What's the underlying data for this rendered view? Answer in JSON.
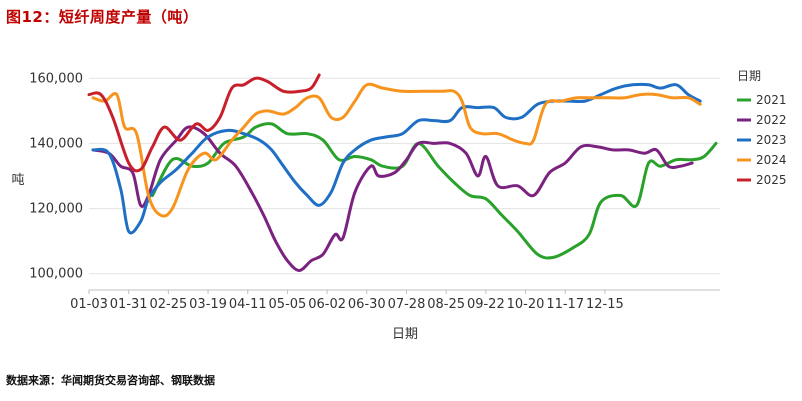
{
  "header": {
    "title": "图12：短纤周度产量（吨）"
  },
  "footer": {
    "source": "数据来源：华闻期货交易咨询部、钢联数据"
  },
  "chart_data": {
    "type": "line",
    "title": "图12：短纤周度产量（吨）",
    "xlabel": "日期",
    "ylabel": "吨",
    "x_ticks": [
      "01-03",
      "01-31",
      "02-25",
      "03-19",
      "04-11",
      "05-05",
      "06-02",
      "06-30",
      "07-28",
      "08-25",
      "09-22",
      "10-20",
      "11-17",
      "12-15"
    ],
    "ylim": [
      95000,
      165000
    ],
    "y_ticks": [
      100000,
      120000,
      140000,
      160000
    ],
    "y_tick_labels": [
      "100,000",
      "120,000",
      "140,000",
      "160,000"
    ],
    "grid": "horizontal",
    "legend": {
      "title": "日期",
      "placement": "right"
    },
    "series": [
      {
        "name": "2021",
        "color": "#2aa12a",
        "points": [
          [
            3.2,
            124000
          ],
          [
            4.2,
            135000
          ],
          [
            5.2,
            133000
          ],
          [
            6.0,
            134000
          ],
          [
            6.8,
            140000
          ],
          [
            7.8,
            142000
          ],
          [
            8.4,
            145000
          ],
          [
            9.2,
            146000
          ],
          [
            10.0,
            143000
          ],
          [
            11.0,
            143000
          ],
          [
            11.8,
            141000
          ],
          [
            12.6,
            135000
          ],
          [
            13.4,
            136000
          ],
          [
            14.2,
            135000
          ],
          [
            14.8,
            133000
          ],
          [
            15.8,
            133000
          ],
          [
            16.6,
            140000
          ],
          [
            17.6,
            133000
          ],
          [
            18.4,
            128000
          ],
          [
            19.2,
            124000
          ],
          [
            20.0,
            123000
          ],
          [
            20.8,
            118000
          ],
          [
            21.6,
            113000
          ],
          [
            22.6,
            106000
          ],
          [
            23.4,
            105000
          ],
          [
            24.4,
            108000
          ],
          [
            25.2,
            112000
          ],
          [
            25.8,
            122000
          ],
          [
            26.8,
            124000
          ],
          [
            27.6,
            121000
          ],
          [
            28.2,
            134000
          ],
          [
            28.8,
            133000
          ],
          [
            29.6,
            135000
          ],
          [
            30.4,
            135000
          ],
          [
            31.0,
            136000
          ],
          [
            31.6,
            140000
          ]
        ]
      },
      {
        "name": "2022",
        "color": "#7b2280",
        "points": [
          [
            0.2,
            138000
          ],
          [
            1.0,
            137000
          ],
          [
            1.6,
            133000
          ],
          [
            2.2,
            131000
          ],
          [
            2.6,
            121000
          ],
          [
            3.0,
            124000
          ],
          [
            3.6,
            135000
          ],
          [
            4.4,
            141000
          ],
          [
            5.0,
            145000
          ],
          [
            5.8,
            143000
          ],
          [
            6.6,
            137000
          ],
          [
            7.4,
            133000
          ],
          [
            8.2,
            125000
          ],
          [
            8.8,
            118000
          ],
          [
            9.4,
            110000
          ],
          [
            10.0,
            104000
          ],
          [
            10.6,
            101000
          ],
          [
            11.2,
            104000
          ],
          [
            11.8,
            106000
          ],
          [
            12.4,
            112000
          ],
          [
            12.8,
            111000
          ],
          [
            13.4,
            125000
          ],
          [
            14.2,
            133000
          ],
          [
            14.6,
            130000
          ],
          [
            15.4,
            131000
          ],
          [
            16.0,
            135000
          ],
          [
            16.6,
            140000
          ],
          [
            17.4,
            140000
          ],
          [
            18.2,
            140000
          ],
          [
            19.0,
            137000
          ],
          [
            19.6,
            130000
          ],
          [
            20.0,
            136000
          ],
          [
            20.6,
            127000
          ],
          [
            21.6,
            127000
          ],
          [
            22.4,
            124000
          ],
          [
            23.2,
            131000
          ],
          [
            24.0,
            134000
          ],
          [
            24.8,
            139000
          ],
          [
            25.6,
            139000
          ],
          [
            26.4,
            138000
          ],
          [
            27.2,
            138000
          ],
          [
            28.0,
            137000
          ],
          [
            28.6,
            138000
          ],
          [
            29.2,
            133000
          ],
          [
            29.8,
            133000
          ],
          [
            30.4,
            134000
          ]
        ]
      },
      {
        "name": "2023",
        "color": "#1f6fc4",
        "points": [
          [
            0.2,
            138000
          ],
          [
            1.0,
            137000
          ],
          [
            1.6,
            126000
          ],
          [
            2.0,
            113000
          ],
          [
            2.6,
            116000
          ],
          [
            3.0,
            123000
          ],
          [
            3.6,
            128000
          ],
          [
            4.4,
            132000
          ],
          [
            5.2,
            137000
          ],
          [
            6.0,
            142000
          ],
          [
            7.0,
            144000
          ],
          [
            7.8,
            143000
          ],
          [
            8.6,
            141000
          ],
          [
            9.2,
            138000
          ],
          [
            9.8,
            133000
          ],
          [
            10.4,
            128000
          ],
          [
            11.0,
            124000
          ],
          [
            11.6,
            121000
          ],
          [
            12.2,
            125000
          ],
          [
            12.8,
            134000
          ],
          [
            13.4,
            138000
          ],
          [
            14.2,
            141000
          ],
          [
            15.0,
            142000
          ],
          [
            15.8,
            143000
          ],
          [
            16.6,
            147000
          ],
          [
            17.4,
            147000
          ],
          [
            18.2,
            147000
          ],
          [
            18.8,
            151000
          ],
          [
            19.6,
            151000
          ],
          [
            20.4,
            151000
          ],
          [
            21.0,
            148000
          ],
          [
            21.8,
            148000
          ],
          [
            22.6,
            152000
          ],
          [
            23.4,
            153000
          ],
          [
            24.2,
            153000
          ],
          [
            25.0,
            153000
          ],
          [
            25.8,
            155000
          ],
          [
            26.6,
            157000
          ],
          [
            27.4,
            158000
          ],
          [
            28.2,
            158000
          ],
          [
            28.8,
            157000
          ],
          [
            29.6,
            158000
          ],
          [
            30.2,
            155000
          ],
          [
            30.8,
            153000
          ]
        ]
      },
      {
        "name": "2024",
        "color": "#f7941d",
        "points": [
          [
            0.2,
            154000
          ],
          [
            0.8,
            153000
          ],
          [
            1.4,
            155000
          ],
          [
            1.8,
            145000
          ],
          [
            2.4,
            143000
          ],
          [
            3.0,
            124000
          ],
          [
            3.6,
            118000
          ],
          [
            4.2,
            120000
          ],
          [
            5.0,
            132000
          ],
          [
            5.8,
            137000
          ],
          [
            6.4,
            135000
          ],
          [
            7.2,
            141000
          ],
          [
            7.8,
            145000
          ],
          [
            8.4,
            149000
          ],
          [
            9.0,
            150000
          ],
          [
            9.8,
            149000
          ],
          [
            10.4,
            151000
          ],
          [
            11.0,
            154000
          ],
          [
            11.6,
            154000
          ],
          [
            12.2,
            148000
          ],
          [
            12.8,
            148000
          ],
          [
            13.4,
            153000
          ],
          [
            14.0,
            158000
          ],
          [
            14.8,
            157000
          ],
          [
            15.8,
            156000
          ],
          [
            16.8,
            156000
          ],
          [
            17.8,
            156000
          ],
          [
            18.4,
            156000
          ],
          [
            18.8,
            153000
          ],
          [
            19.2,
            145000
          ],
          [
            19.8,
            143000
          ],
          [
            20.6,
            143000
          ],
          [
            21.4,
            141000
          ],
          [
            22.0,
            140000
          ],
          [
            22.4,
            141000
          ],
          [
            23.0,
            152000
          ],
          [
            23.8,
            153000
          ],
          [
            24.6,
            154000
          ],
          [
            25.4,
            154000
          ],
          [
            26.2,
            154000
          ],
          [
            27.0,
            154000
          ],
          [
            27.8,
            155000
          ],
          [
            28.6,
            155000
          ],
          [
            29.4,
            154000
          ],
          [
            30.2,
            154000
          ],
          [
            30.8,
            152000
          ]
        ]
      },
      {
        "name": "2025",
        "color": "#c8202a",
        "points": [
          [
            0.0,
            155000
          ],
          [
            0.6,
            155000
          ],
          [
            1.2,
            148000
          ],
          [
            2.0,
            134000
          ],
          [
            2.6,
            132000
          ],
          [
            3.2,
            139000
          ],
          [
            3.8,
            145000
          ],
          [
            4.6,
            141000
          ],
          [
            5.4,
            146000
          ],
          [
            6.0,
            144000
          ],
          [
            6.6,
            148000
          ],
          [
            7.2,
            157000
          ],
          [
            7.8,
            158000
          ],
          [
            8.4,
            160000
          ],
          [
            9.0,
            159000
          ],
          [
            9.8,
            156000
          ],
          [
            10.6,
            156000
          ],
          [
            11.2,
            157000
          ],
          [
            11.6,
            161000
          ]
        ]
      }
    ]
  }
}
